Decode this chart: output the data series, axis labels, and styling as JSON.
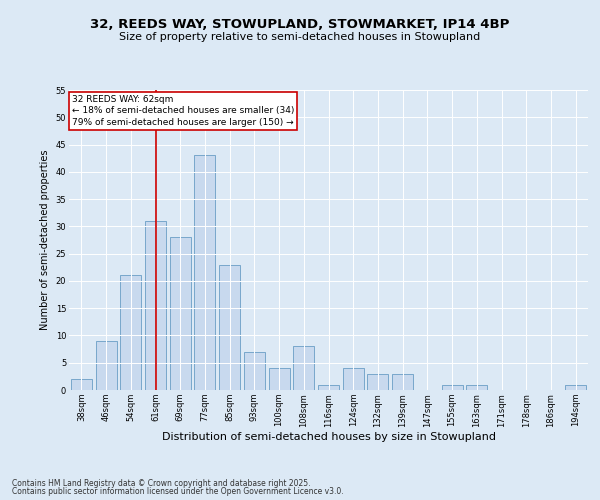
{
  "title": "32, REEDS WAY, STOWUPLAND, STOWMARKET, IP14 4BP",
  "subtitle": "Size of property relative to semi-detached houses in Stowupland",
  "xlabel": "Distribution of semi-detached houses by size in Stowupland",
  "ylabel": "Number of semi-detached properties",
  "categories": [
    "38sqm",
    "46sqm",
    "54sqm",
    "61sqm",
    "69sqm",
    "77sqm",
    "85sqm",
    "93sqm",
    "100sqm",
    "108sqm",
    "116sqm",
    "124sqm",
    "132sqm",
    "139sqm",
    "147sqm",
    "155sqm",
    "163sqm",
    "171sqm",
    "178sqm",
    "186sqm",
    "194sqm"
  ],
  "values": [
    2,
    9,
    21,
    31,
    28,
    43,
    23,
    7,
    4,
    8,
    1,
    4,
    3,
    3,
    0,
    1,
    1,
    0,
    0,
    0,
    1
  ],
  "bar_color": "#c8d9ee",
  "bar_edge_color": "#6a9ec5",
  "vline_color": "#cc0000",
  "vline_x": 3,
  "annotation_title": "32 REEDS WAY: 62sqm",
  "annotation_line1": "← 18% of semi-detached houses are smaller (34)",
  "annotation_line2": "79% of semi-detached houses are larger (150) →",
  "annotation_box_color": "#cc0000",
  "ylim": [
    0,
    55
  ],
  "yticks": [
    0,
    5,
    10,
    15,
    20,
    25,
    30,
    35,
    40,
    45,
    50,
    55
  ],
  "fig_bg_color": "#dce9f5",
  "plot_bg_color": "#dce9f5",
  "grid_color": "#ffffff",
  "footer_line1": "Contains HM Land Registry data © Crown copyright and database right 2025.",
  "footer_line2": "Contains public sector information licensed under the Open Government Licence v3.0.",
  "title_fontsize": 9.5,
  "subtitle_fontsize": 8,
  "ylabel_fontsize": 7,
  "xlabel_fontsize": 8,
  "tick_fontsize": 6,
  "annotation_fontsize": 6.5,
  "footer_fontsize": 5.5
}
